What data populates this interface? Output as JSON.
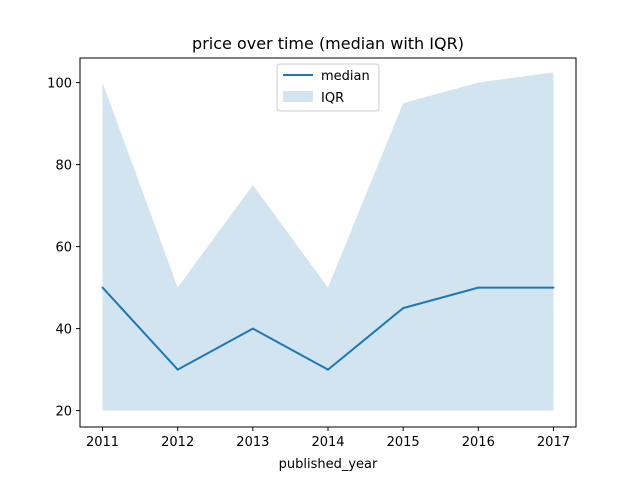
{
  "chart_data": {
    "type": "line",
    "title": "price over time (median with IQR)",
    "xlabel": "published_year",
    "ylabel": "",
    "x": [
      2011,
      2012,
      2013,
      2014,
      2015,
      2016,
      2017
    ],
    "x_tick_labels": [
      "2011",
      "2012",
      "2013",
      "2014",
      "2015",
      "2016",
      "2017"
    ],
    "y_ticks": [
      20,
      40,
      60,
      80,
      100
    ],
    "ylim": [
      16,
      106
    ],
    "xlim": [
      2010.7,
      2017.3
    ],
    "grid": false,
    "legend_position": "top-center",
    "series": [
      {
        "name": "median",
        "kind": "line",
        "color": "#1f77b4",
        "values": [
          50,
          30,
          40,
          30,
          45,
          50,
          50
        ]
      },
      {
        "name": "IQR",
        "kind": "band",
        "color": "#1f77b4",
        "lower": [
          20,
          20,
          20,
          20,
          20,
          20,
          20
        ],
        "upper": [
          100,
          50,
          75,
          50,
          95,
          100,
          102.5
        ]
      }
    ]
  }
}
